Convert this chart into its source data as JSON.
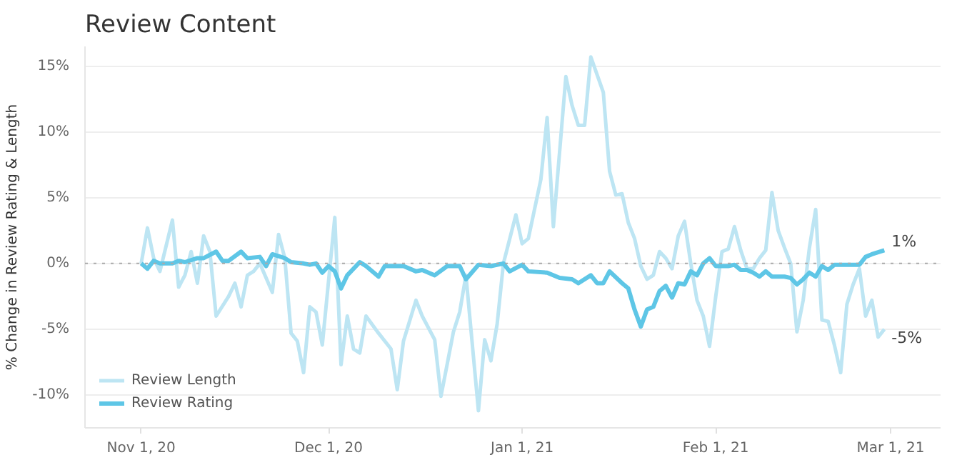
{
  "chart_data": {
    "type": "line",
    "title": "Review Content",
    "ylabel": "% Change in Review Rating & Length",
    "xlim": [
      "2020-10-23",
      "2021-03-09"
    ],
    "xticks": [
      {
        "value": "2020-11-01",
        "label": "Nov 1, 20"
      },
      {
        "value": "2020-12-01",
        "label": "Dec 1, 20"
      },
      {
        "value": "2021-01-01",
        "label": "Jan 1, 21"
      },
      {
        "value": "2021-02-01",
        "label": "Feb 1, 21"
      },
      {
        "value": "2021-03-01",
        "label": "Mar 1, 21"
      }
    ],
    "ylim": [
      -12.5,
      16.5
    ],
    "yticks": [
      {
        "value": -10,
        "label": "-10%"
      },
      {
        "value": -5,
        "label": "-5%"
      },
      {
        "value": 0,
        "label": "0%"
      },
      {
        "value": 5,
        "label": "5%"
      },
      {
        "value": 10,
        "label": "10%"
      },
      {
        "value": 15,
        "label": "15%"
      }
    ],
    "grid": "y",
    "legend": "bottom left",
    "marker": "none",
    "line_style": "solid",
    "ref_lines": [
      {
        "axis": "y",
        "value": 0,
        "color": "#aaaaaa",
        "line_style": "dotted"
      }
    ],
    "series": [
      {
        "name": "Review Length",
        "color": "#bde5f3",
        "x": [
          "2020-11-01",
          "2020-11-02",
          "2020-11-03",
          "2020-11-04",
          "2020-11-06",
          "2020-11-07",
          "2020-11-08",
          "2020-11-09",
          "2020-11-10",
          "2020-11-11",
          "2020-11-12",
          "2020-11-13",
          "2020-11-15",
          "2020-11-16",
          "2020-11-17",
          "2020-11-18",
          "2020-11-19",
          "2020-11-20",
          "2020-11-22",
          "2020-11-23",
          "2020-11-24",
          "2020-11-25",
          "2020-11-26",
          "2020-11-27",
          "2020-11-28",
          "2020-11-29",
          "2020-11-30",
          "2020-12-02",
          "2020-12-03",
          "2020-12-04",
          "2020-12-05",
          "2020-12-06",
          "2020-12-07",
          "2020-12-09",
          "2020-12-11",
          "2020-12-12",
          "2020-12-13",
          "2020-12-15",
          "2020-12-16",
          "2020-12-18",
          "2020-12-19",
          "2020-12-21",
          "2020-12-22",
          "2020-12-23",
          "2020-12-25",
          "2020-12-26",
          "2020-12-27",
          "2020-12-28",
          "2020-12-29",
          "2020-12-31",
          "2021-01-01",
          "2021-01-02",
          "2021-01-04",
          "2021-01-05",
          "2021-01-06",
          "2021-01-08",
          "2021-01-09",
          "2021-01-10",
          "2021-01-11",
          "2021-01-12",
          "2021-01-14",
          "2021-01-15",
          "2021-01-16",
          "2021-01-17",
          "2021-01-18",
          "2021-01-19",
          "2021-01-20",
          "2021-01-21",
          "2021-01-22",
          "2021-01-23",
          "2021-01-24",
          "2021-01-25",
          "2021-01-26",
          "2021-01-27",
          "2021-01-28",
          "2021-01-29",
          "2021-01-30",
          "2021-01-31",
          "2021-02-01",
          "2021-02-02",
          "2021-02-03",
          "2021-02-04",
          "2021-02-05",
          "2021-02-06",
          "2021-02-07",
          "2021-02-08",
          "2021-02-09",
          "2021-02-10",
          "2021-02-11",
          "2021-02-12",
          "2021-02-13",
          "2021-02-14",
          "2021-02-15",
          "2021-02-16",
          "2021-02-17",
          "2021-02-18",
          "2021-02-19",
          "2021-02-20",
          "2021-02-21",
          "2021-02-22",
          "2021-02-23",
          "2021-02-24",
          "2021-02-25",
          "2021-02-26",
          "2021-02-27",
          "2021-02-28"
        ],
        "values": [
          0,
          2.7,
          0.4,
          -0.6,
          3.3,
          -1.8,
          -0.9,
          0.9,
          -1.5,
          2.1,
          0.9,
          -4,
          -2.5,
          -1.5,
          -3.3,
          -0.9,
          -0.6,
          0,
          -2.2,
          2.2,
          0.4,
          -5.3,
          -5.9,
          -8.3,
          -3.3,
          -3.7,
          -6.2,
          3.5,
          -7.7,
          -4,
          -6.5,
          -6.8,
          -4,
          -5.3,
          -6.5,
          -9.6,
          -5.9,
          -2.8,
          -4,
          -5.8,
          -10.1,
          -5.2,
          -3.7,
          -0.9,
          -11.2,
          -5.8,
          -7.4,
          -4.6,
          0,
          3.7,
          1.5,
          1.9,
          6.4,
          11.1,
          2.8,
          14.2,
          12,
          10.5,
          10.5,
          15.7,
          13,
          7,
          5.2,
          5.3,
          3.1,
          1.9,
          -0.2,
          -1.2,
          -0.9,
          0.9,
          0.4,
          -0.4,
          2.1,
          3.2,
          0,
          -2.8,
          -4,
          -6.3,
          -2.5,
          0.9,
          1.1,
          2.8,
          1,
          -0.4,
          -0.4,
          0.4,
          1,
          5.4,
          2.5,
          1.2,
          0,
          -5.2,
          -2.8,
          1.2,
          4.1,
          -4.3,
          -4.4,
          -6.2,
          -8.3,
          -3.1,
          -1.6,
          -0.4,
          -4,
          -2.8,
          -5.6,
          -5
        ],
        "value_labels": [
          null,
          null,
          null,
          null,
          null,
          null,
          null,
          null,
          null,
          null,
          null,
          null,
          null,
          null,
          null,
          null,
          null,
          null,
          null,
          null,
          null,
          null,
          null,
          null,
          null,
          null,
          null,
          null,
          null,
          null,
          null,
          null,
          null,
          null,
          null,
          null,
          null,
          null,
          null,
          null,
          null,
          null,
          null,
          null,
          null,
          null,
          null,
          null,
          null,
          null,
          null,
          null,
          null,
          null,
          null,
          null,
          null,
          null,
          null,
          null,
          null,
          null,
          null,
          null,
          null,
          null,
          null,
          null,
          null,
          null,
          null,
          null,
          null,
          null,
          null,
          null,
          null,
          null,
          null,
          null,
          null,
          null,
          null,
          null,
          null,
          null,
          null,
          null,
          null,
          null,
          null,
          null,
          null,
          null,
          null,
          null,
          null,
          null,
          null,
          null,
          null,
          null,
          null,
          null,
          null,
          "-5%"
        ]
      },
      {
        "name": "Review Rating",
        "color": "#5ec6e6",
        "x": [
          "2020-11-01",
          "2020-11-02",
          "2020-11-03",
          "2020-11-04",
          "2020-11-06",
          "2020-11-07",
          "2020-11-08",
          "2020-11-10",
          "2020-11-11",
          "2020-11-13",
          "2020-11-14",
          "2020-11-15",
          "2020-11-17",
          "2020-11-18",
          "2020-11-20",
          "2020-11-21",
          "2020-11-22",
          "2020-11-24",
          "2020-11-25",
          "2020-11-27",
          "2020-11-28",
          "2020-11-29",
          "2020-11-30",
          "2020-12-01",
          "2020-12-02",
          "2020-12-03",
          "2020-12-04",
          "2020-12-06",
          "2020-12-07",
          "2020-12-09",
          "2020-12-10",
          "2020-12-13",
          "2020-12-15",
          "2020-12-16",
          "2020-12-18",
          "2020-12-20",
          "2020-12-22",
          "2020-12-23",
          "2020-12-25",
          "2020-12-27",
          "2020-12-29",
          "2020-12-30",
          "2021-01-01",
          "2021-01-02",
          "2021-01-05",
          "2021-01-07",
          "2021-01-09",
          "2021-01-10",
          "2021-01-12",
          "2021-01-13",
          "2021-01-14",
          "2021-01-15",
          "2021-01-17",
          "2021-01-18",
          "2021-01-19",
          "2021-01-20",
          "2021-01-21",
          "2021-01-22",
          "2021-01-23",
          "2021-01-24",
          "2021-01-25",
          "2021-01-26",
          "2021-01-27",
          "2021-01-28",
          "2021-01-29",
          "2021-01-30",
          "2021-01-31",
          "2021-02-01",
          "2021-02-02",
          "2021-02-03",
          "2021-02-04",
          "2021-02-05",
          "2021-02-06",
          "2021-02-07",
          "2021-02-08",
          "2021-02-09",
          "2021-02-10",
          "2021-02-12",
          "2021-02-13",
          "2021-02-14",
          "2021-02-15",
          "2021-02-16",
          "2021-02-17",
          "2021-02-18",
          "2021-02-19",
          "2021-02-20",
          "2021-02-22",
          "2021-02-24",
          "2021-02-25",
          "2021-02-26",
          "2021-02-28"
        ],
        "values": [
          0,
          -0.4,
          0.2,
          0,
          0,
          0.2,
          0.1,
          0.4,
          0.4,
          0.9,
          0.2,
          0.2,
          0.9,
          0.4,
          0.5,
          -0.2,
          0.7,
          0.4,
          0.1,
          0,
          -0.1,
          0,
          -0.7,
          -0.2,
          -0.6,
          -1.9,
          -0.9,
          0.1,
          -0.2,
          -1,
          -0.2,
          -0.2,
          -0.6,
          -0.5,
          -0.9,
          -0.2,
          -0.2,
          -1.2,
          -0.1,
          -0.2,
          0,
          -0.6,
          -0.1,
          -0.6,
          -0.7,
          -1.1,
          -1.2,
          -1.5,
          -0.9,
          -1.5,
          -1.5,
          -0.6,
          -1.5,
          -1.9,
          -3.5,
          -4.8,
          -3.5,
          -3.3,
          -2.1,
          -1.7,
          -2.6,
          -1.5,
          -1.6,
          -0.6,
          -0.9,
          0,
          0.4,
          -0.2,
          -0.2,
          -0.2,
          -0.1,
          -0.5,
          -0.5,
          -0.7,
          -1,
          -0.6,
          -1,
          -1,
          -1.1,
          -1.6,
          -1.2,
          -0.7,
          -1,
          -0.2,
          -0.5,
          -0.1,
          -0.1,
          -0.1,
          0.5,
          0.7,
          1
        ],
        "value_labels": [
          null,
          null,
          null,
          null,
          null,
          null,
          null,
          null,
          null,
          null,
          null,
          null,
          null,
          null,
          null,
          null,
          null,
          null,
          null,
          null,
          null,
          null,
          null,
          null,
          null,
          null,
          null,
          null,
          null,
          null,
          null,
          null,
          null,
          null,
          null,
          null,
          null,
          null,
          null,
          null,
          null,
          null,
          null,
          null,
          null,
          null,
          null,
          null,
          null,
          null,
          null,
          null,
          null,
          null,
          null,
          null,
          null,
          null,
          null,
          null,
          null,
          null,
          null,
          null,
          null,
          null,
          null,
          null,
          null,
          null,
          null,
          null,
          null,
          null,
          null,
          null,
          null,
          null,
          null,
          null,
          null,
          null,
          null,
          null,
          null,
          null,
          null,
          null,
          null,
          null,
          "1%"
        ]
      }
    ]
  }
}
